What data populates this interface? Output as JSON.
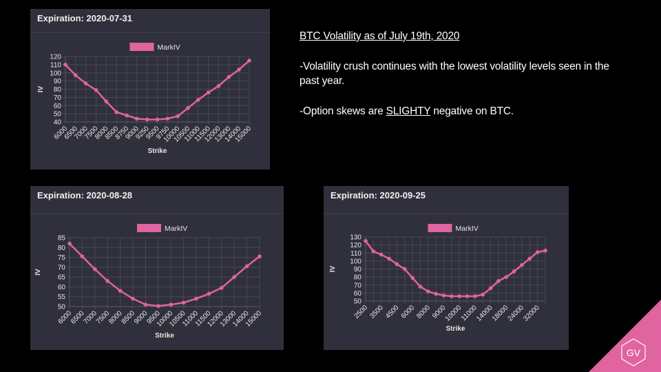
{
  "slide": {
    "heading": "BTC Volatility as of July 19th, 2020",
    "paragraph1": "-Volatility crush continues with the lowest volatility levels seen in the past year.",
    "paragraph2": {
      "before": "-Option skews are ",
      "emphasis": "SLIGHTY",
      "after": " negative on BTC."
    },
    "logo": "GV"
  },
  "chart_data": [
    {
      "type": "line",
      "title": "Expiration: 2020-07-31",
      "xlabel": "Strike",
      "ylabel": "IV",
      "categories": [
        "6000",
        "6500",
        "7000",
        "7500",
        "8000",
        "8500",
        "8750",
        "9000",
        "9250",
        "9500",
        "9750",
        "10000",
        "10500",
        "11000",
        "11500",
        "12000",
        "13000",
        "14000",
        "15000"
      ],
      "series": [
        {
          "name": "MarkIV",
          "color": "#e0649f",
          "values": [
            110,
            97,
            87,
            79,
            65,
            52,
            48,
            44,
            43,
            43,
            44,
            47,
            57,
            67,
            76,
            84,
            95,
            104,
            115
          ]
        }
      ],
      "ylim": [
        40,
        120
      ],
      "yticks": [
        40,
        50,
        60,
        70,
        80,
        90,
        100,
        110,
        120
      ],
      "grid": true,
      "legend": "top"
    },
    {
      "type": "line",
      "title": "Expiration: 2020-08-28",
      "xlabel": "Strike",
      "ylabel": "IV",
      "categories": [
        "6000",
        "6500",
        "7000",
        "7500",
        "8000",
        "8500",
        "9000",
        "9500",
        "10000",
        "10500",
        "11000",
        "11500",
        "12000",
        "13000",
        "14000",
        "15000"
      ],
      "series": [
        {
          "name": "MarkIV",
          "color": "#e0649f",
          "values": [
            82,
            75.5,
            69,
            63,
            58,
            54,
            51,
            50.3,
            51,
            52,
            54,
            56.5,
            59.5,
            65,
            70.5,
            75.5
          ]
        }
      ],
      "ylim": [
        50,
        85
      ],
      "yticks": [
        50,
        55,
        60,
        65,
        70,
        75,
        80,
        85
      ],
      "grid": true,
      "legend": "top"
    },
    {
      "type": "line",
      "title": "Expiration: 2020-09-25",
      "xlabel": "Strike",
      "ylabel": "IV",
      "categories": [
        "2500",
        null,
        "3500",
        null,
        "4500",
        null,
        "6000",
        null,
        "8000",
        null,
        "9000",
        null,
        "10000",
        null,
        "11000",
        null,
        "14000",
        null,
        "18000",
        null,
        "24000",
        null,
        "32000",
        null
      ],
      "series": [
        {
          "name": "MarkIV",
          "color": "#e0649f",
          "values": [
            125,
            112,
            108,
            103,
            96,
            90,
            79,
            68,
            62,
            59,
            57,
            56,
            56,
            56,
            56,
            58,
            66,
            75,
            80,
            87,
            95,
            103,
            111,
            113
          ]
        }
      ],
      "ylim": [
        50,
        130
      ],
      "yticks": [
        50,
        60,
        70,
        80,
        90,
        100,
        110,
        120,
        130
      ],
      "grid": true,
      "legend": "top"
    }
  ]
}
